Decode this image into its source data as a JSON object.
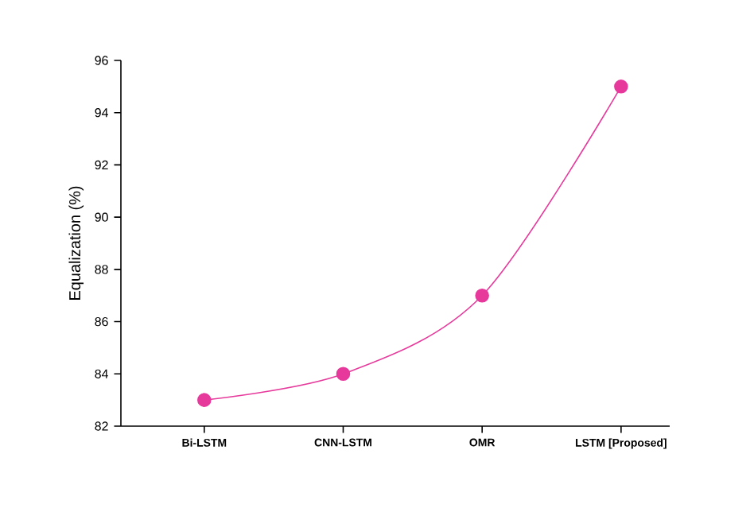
{
  "chart_data": {
    "type": "line",
    "ylabel": "Equalization (%)",
    "categories": [
      "Bi-LSTM",
      "CNN-LSTM",
      "OMR",
      "LSTM [Proposed]"
    ],
    "values": [
      83,
      84,
      87,
      95
    ],
    "color": "#e6399b",
    "marker": "circle",
    "line_style": "solid",
    "ylim": [
      82,
      96
    ],
    "yticks": [
      82,
      84,
      86,
      88,
      90,
      92,
      94,
      96
    ]
  }
}
